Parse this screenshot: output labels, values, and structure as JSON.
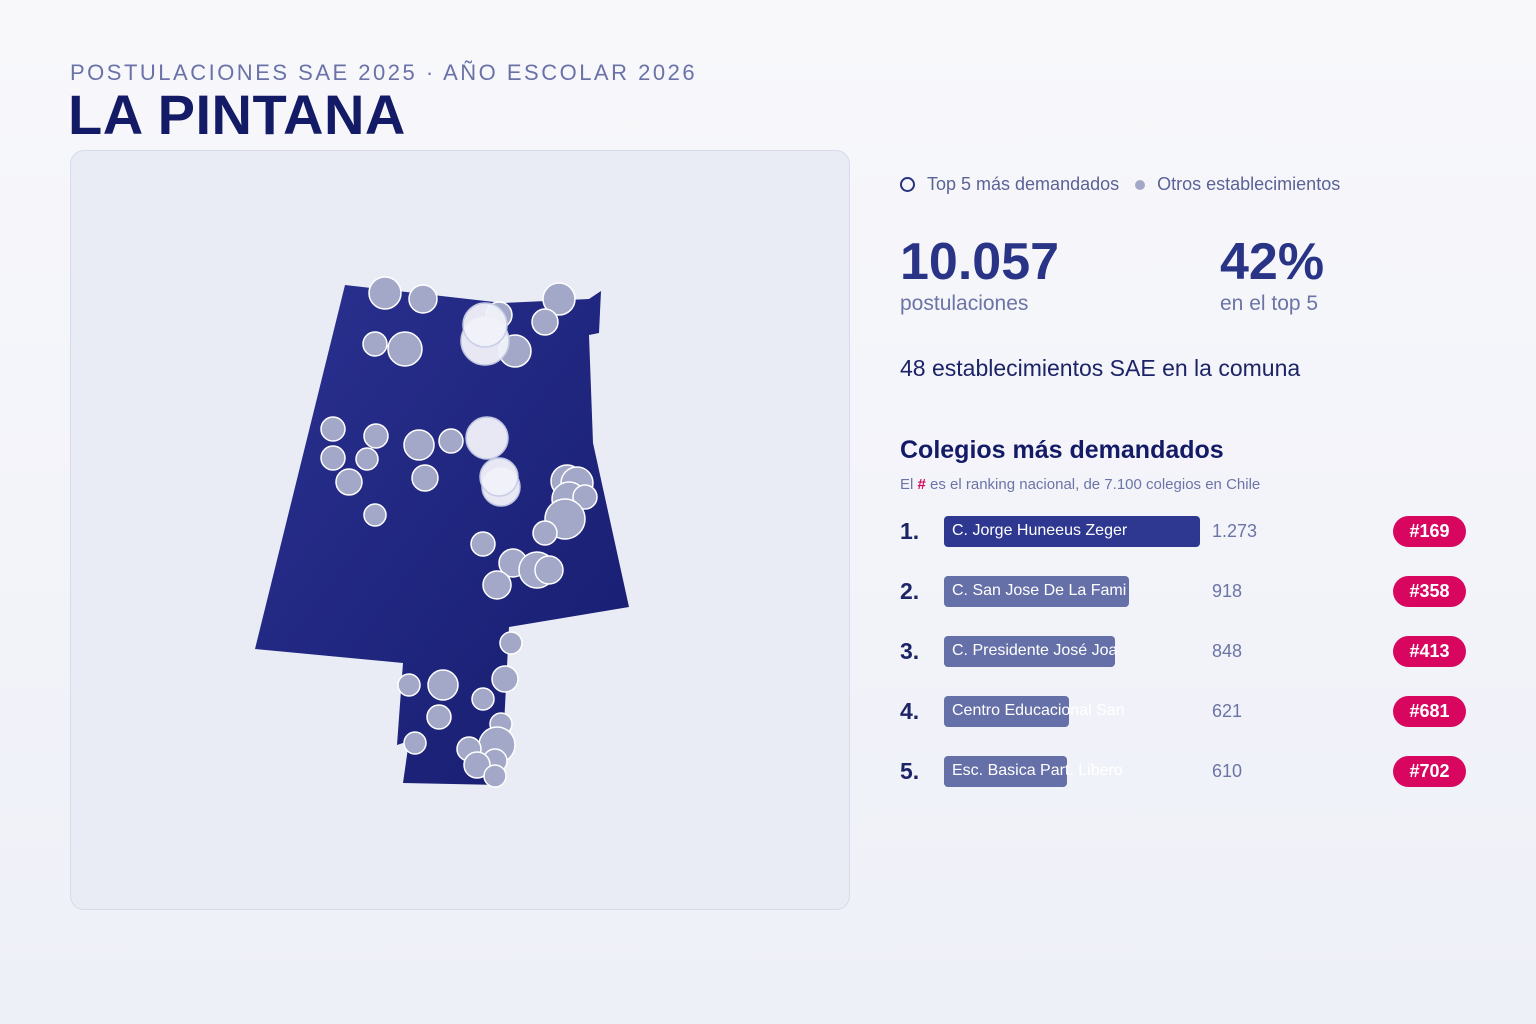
{
  "header": {
    "kicker": "POSTULACIONES SAE 2025 · AÑO ESCOLAR 2026",
    "title": "LA PINTANA"
  },
  "legend": {
    "top5_label": "Top 5 más demandados",
    "others_label": "Otros establecimientos"
  },
  "stats": {
    "postulaciones_value": "10.057",
    "postulaciones_label": "postulaciones",
    "top5_share_value": "42%",
    "top5_share_label": "en el top 5",
    "establecimientos_text": "48 establecimientos SAE en la comuna"
  },
  "ranking": {
    "title": "Colegios más demandados",
    "note_prefix": "El ",
    "note_hash": "#",
    "note_suffix": " es el ranking nacional, de 7.100 colegios en Chile",
    "max_count": 1273,
    "items": [
      {
        "position": "1.",
        "name": "C. Jorge Huneeus Zeger",
        "count": 1273,
        "count_label": "1.273",
        "rank": "#169"
      },
      {
        "position": "2.",
        "name": "C. San Jose De La Fami",
        "count": 918,
        "count_label": "918",
        "rank": "#358"
      },
      {
        "position": "3.",
        "name": "C. Presidente José Joa",
        "count": 848,
        "count_label": "848",
        "rank": "#413"
      },
      {
        "position": "4.",
        "name": "Centro Educacional San",
        "count": 621,
        "count_label": "621",
        "rank": "#681"
      },
      {
        "position": "5.",
        "name": "Esc. Basica Part. Libero",
        "count": 610,
        "count_label": "610",
        "rank": "#702"
      }
    ]
  },
  "colors": {
    "accent": "#141b66",
    "map_fill": "#1f2680",
    "bar_top": "#2e3890",
    "bar_other": "#6670a8",
    "rank_badge": "#d8065f",
    "school_other": "#a3a8c8",
    "school_top5": "#f2f3fa"
  }
}
